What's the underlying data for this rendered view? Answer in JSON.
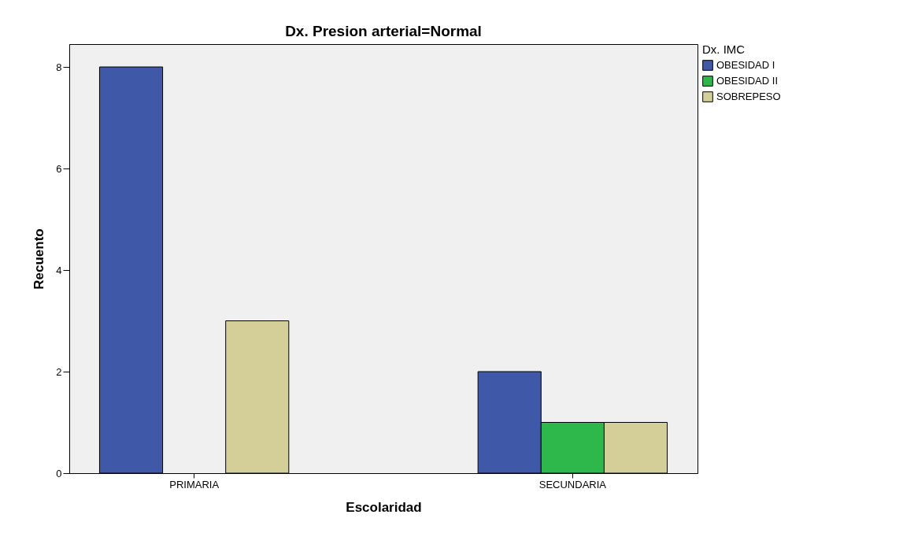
{
  "chart_data": {
    "type": "bar",
    "title": "Dx. Presion arterial=Normal",
    "xlabel": "Escolaridad",
    "ylabel": "Recuento",
    "legend_title": "Dx. IMC",
    "categories": [
      "PRIMARIA",
      "SECUNDARIA"
    ],
    "series": [
      {
        "name": "OBESIDAD I",
        "color": "#3f58a8",
        "values": [
          8,
          2
        ]
      },
      {
        "name": "OBESIDAD II",
        "color": "#2eb84b",
        "values": [
          null,
          1
        ]
      },
      {
        "name": "SOBREPESO",
        "color": "#d4cf98",
        "values": [
          3,
          1
        ]
      }
    ],
    "ylim": [
      0,
      8.45
    ],
    "yticks": [
      0,
      2,
      4,
      6,
      8
    ],
    "grid": false,
    "legend": "top right"
  }
}
